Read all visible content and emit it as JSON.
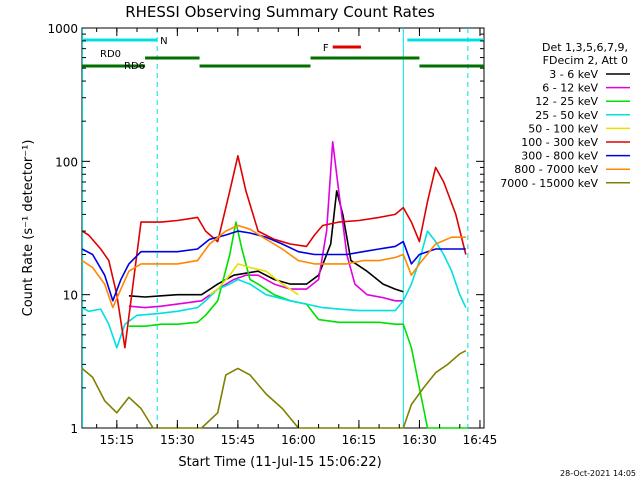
{
  "chart_data": {
    "type": "line",
    "title": "RHESSI Observing Summary Count Rates",
    "xlabel": "Start Time (11-Jul-15 15:06:22)",
    "ylabel": "Count Rate (s⁻¹ detector⁻¹)",
    "y_scale": "log",
    "ylim": [
      1,
      1000
    ],
    "xlim": [
      "15:06:22",
      "16:46:00"
    ],
    "x_ticks": [
      "15:15",
      "15:30",
      "15:45",
      "16:00",
      "16:15",
      "16:30",
      "16:45"
    ],
    "y_ticks": [
      "1",
      "10",
      "100",
      "1000"
    ],
    "grid": false,
    "footer": "28-Oct-2021 14:05",
    "legend": {
      "position": "right",
      "header": [
        "Det 1,3,5,6,7,9,",
        "FDecim 2, Att 0"
      ],
      "entries": [
        {
          "label": "3 - 6 keV",
          "color": "#000000"
        },
        {
          "label": "6 - 12 keV",
          "color": "#e000e0"
        },
        {
          "label": "12 - 25 keV",
          "color": "#00e000"
        },
        {
          "label": "25 - 50 keV",
          "color": "#00e0e0"
        },
        {
          "label": "50 - 100 keV",
          "color": "#e8e000"
        },
        {
          "label": "100 - 300 keV",
          "color": "#e00000"
        },
        {
          "label": "300 - 800 keV",
          "color": "#0000e0"
        },
        {
          "label": "800 - 7000 keV",
          "color": "#ff8800"
        },
        {
          "label": "7000 - 15000 keV",
          "color": "#808000"
        }
      ]
    },
    "flags": [
      {
        "label": "N",
        "color": "#00e0e0",
        "segments": [
          [
            "15:06:22",
            "15:25:00"
          ],
          [
            "16:27:00",
            "16:46:00"
          ]
        ]
      },
      {
        "label": "RD0",
        "color": "#007000",
        "segments": [
          [
            "15:22:00",
            "15:35:30"
          ],
          [
            "16:03:00",
            "16:30:00"
          ]
        ]
      },
      {
        "label": "RD6",
        "color": "#007000",
        "segments": [
          [
            "15:06:22",
            "15:22:00"
          ],
          [
            "15:35:30",
            "16:03:00"
          ],
          [
            "16:30:00",
            "16:46:00"
          ]
        ]
      },
      {
        "label": "F",
        "color": "#e00000",
        "segments": [
          [
            "16:08:30",
            "16:15:30"
          ]
        ]
      }
    ],
    "boundaries": {
      "solid": [
        "15:06:30",
        "16:26:00"
      ],
      "dashed": [
        "15:25:00",
        "16:42:00"
      ]
    },
    "series": [
      {
        "name": "3 - 6 keV",
        "color": "#000000",
        "x": [
          "15:06:22",
          "15:08:00",
          "15:10:00",
          "15:13:00",
          "15:16:00",
          "15:18:00",
          "15:22:00",
          "15:26:00",
          "15:30:00",
          "15:36:00",
          "15:40:00",
          "15:44:00",
          "15:47:00",
          "15:50:00",
          "15:54:00",
          "15:58:00",
          "16:02:00",
          "16:05:00",
          "16:08:00",
          "16:09:30",
          "16:11:00",
          "16:13:00",
          "16:17:00",
          "16:21:00",
          "16:24:00",
          "16:26:00",
          "16:29:00",
          "16:31:00"
        ],
        "y": [
          null,
          null,
          null,
          null,
          null,
          9.8,
          9.6,
          9.8,
          10,
          10,
          12,
          14,
          14.5,
          15,
          13,
          12,
          12,
          14,
          24,
          60,
          40,
          18,
          15,
          12,
          11,
          10.5,
          null,
          null
        ]
      },
      {
        "name": "6 - 12 keV",
        "color": "#e000e0",
        "x": [
          "15:06:22",
          "15:16:00",
          "15:18:00",
          "15:22:00",
          "15:26:00",
          "15:30:00",
          "15:36:00",
          "15:40:00",
          "15:44:00",
          "15:47:00",
          "15:50:00",
          "15:54:00",
          "15:58:00",
          "16:02:00",
          "16:05:00",
          "16:07:00",
          "16:08:30",
          "16:10:00",
          "16:12:00",
          "16:14:00",
          "16:17:00",
          "16:21:00",
          "16:24:00",
          "16:26:00",
          "16:29:00"
        ],
        "y": [
          null,
          null,
          8.2,
          8.0,
          8.2,
          8.5,
          9,
          11,
          13,
          14,
          14,
          12,
          11,
          11,
          13,
          30,
          140,
          60,
          20,
          12,
          10,
          9.5,
          9,
          9,
          null
        ]
      },
      {
        "name": "12 - 25 keV",
        "color": "#00e000",
        "x": [
          "15:06:22",
          "15:16:00",
          "15:18:00",
          "15:22:00",
          "15:26:00",
          "15:30:00",
          "15:35:00",
          "15:37:00",
          "15:40:00",
          "15:43:00",
          "15:44:30",
          "15:46:00",
          "15:48:00",
          "15:50:00",
          "15:54:00",
          "15:58:00",
          "16:02:00",
          "16:05:00",
          "16:10:00",
          "16:15:00",
          "16:20:00",
          "16:24:00",
          "16:26:00",
          "16:28:00",
          "16:30:00",
          "16:32:00",
          "16:34:00",
          "16:36:00",
          "16:38:00",
          "16:40:00",
          "16:42:00"
        ],
        "y": [
          null,
          null,
          5.8,
          5.8,
          6,
          6,
          6.2,
          7,
          9,
          20,
          35,
          22,
          13,
          12,
          10,
          9,
          8.5,
          6.5,
          6.2,
          6.2,
          6.2,
          6,
          6,
          4,
          2,
          1,
          1,
          1,
          1,
          1,
          1
        ]
      },
      {
        "name": "25 - 50 keV",
        "color": "#00e0e0",
        "x": [
          "15:06:22",
          "15:08:00",
          "15:11:00",
          "15:13:00",
          "15:15:00",
          "15:17:00",
          "15:20:00",
          "15:25:00",
          "15:30:00",
          "15:35:00",
          "15:37:00",
          "15:40:00",
          "15:43:00",
          "15:45:00",
          "15:48:00",
          "15:52:00",
          "15:58:00",
          "16:02:00",
          "16:06:00",
          "16:10:00",
          "16:15:00",
          "16:20:00",
          "16:24:00",
          "16:26:00",
          "16:28:00",
          "16:30:00",
          "16:32:00",
          "16:34:00",
          "16:36:00",
          "16:38:00",
          "16:40:00",
          "16:41:30"
        ],
        "y": [
          8,
          7.5,
          7.8,
          6,
          4,
          6,
          7,
          7.2,
          7.5,
          8,
          9,
          11,
          12,
          13,
          12,
          10,
          9,
          8.5,
          8,
          7.8,
          7.6,
          7.6,
          7.6,
          9,
          12,
          18,
          30,
          25,
          20,
          15,
          10,
          8
        ]
      },
      {
        "name": "50 - 100 keV",
        "color": "#e8e000",
        "x": [
          "15:06:22",
          "15:36:00",
          "15:38:00",
          "15:40:00",
          "15:43:00",
          "15:45:00",
          "15:48:00",
          "15:52:00",
          "15:56:00",
          "16:00:00",
          "16:02:00",
          "16:04:00",
          "16:08:00",
          "16:26:00"
        ],
        "y": [
          null,
          null,
          10,
          11,
          14,
          17,
          16,
          15,
          12,
          10,
          null,
          null,
          null,
          null
        ]
      },
      {
        "name": "100 - 300 keV",
        "color": "#e00000",
        "x": [
          "15:06:22",
          "15:08:00",
          "15:11:00",
          "15:13:00",
          "15:15:00",
          "15:17:00",
          "15:21:00",
          "15:26:00",
          "15:30:00",
          "15:35:00",
          "15:37:00",
          "15:40:00",
          "15:43:00",
          "15:45:00",
          "15:47:00",
          "15:50:00",
          "15:54:00",
          "15:58:00",
          "16:02:00",
          "16:04:00",
          "16:06:00",
          "16:10:00",
          "16:15:00",
          "16:20:00",
          "16:24:00",
          "16:26:00",
          "16:28:00",
          "16:30:00",
          "16:32:00",
          "16:34:00",
          "16:36:00",
          "16:39:00",
          "16:41:30"
        ],
        "y": [
          30,
          28,
          22,
          18,
          10,
          4,
          35,
          35,
          36,
          38,
          30,
          25,
          60,
          110,
          60,
          30,
          26,
          24,
          23,
          28,
          33,
          35,
          36,
          38,
          40,
          45,
          35,
          25,
          50,
          90,
          70,
          40,
          20
        ]
      },
      {
        "name": "300 - 800 keV",
        "color": "#0000e0",
        "x": [
          "15:06:22",
          "15:09:00",
          "15:12:00",
          "15:14:00",
          "15:16:00",
          "15:18:00",
          "15:21:00",
          "15:26:00",
          "15:30:00",
          "15:35:00",
          "15:38:00",
          "15:42:00",
          "15:45:00",
          "15:48:00",
          "15:52:00",
          "15:56:00",
          "16:00:00",
          "16:04:00",
          "16:08:00",
          "16:12:00",
          "16:16:00",
          "16:20:00",
          "16:24:00",
          "16:26:00",
          "16:28:00",
          "16:30:00",
          "16:34:00",
          "16:38:00",
          "16:41:30"
        ],
        "y": [
          22,
          20,
          14,
          9,
          13,
          17,
          21,
          21,
          21,
          22,
          26,
          28,
          30,
          29,
          27,
          24,
          21,
          20,
          20,
          20,
          21,
          22,
          23,
          25,
          17,
          20,
          22,
          22,
          22
        ]
      },
      {
        "name": "800 - 7000 keV",
        "color": "#ff8800",
        "x": [
          "15:06:22",
          "15:09:00",
          "15:12:00",
          "15:14:00",
          "15:16:00",
          "15:18:00",
          "15:21:00",
          "15:26:00",
          "15:30:00",
          "15:35:00",
          "15:38:00",
          "15:42:00",
          "15:45:00",
          "15:48:00",
          "15:52:00",
          "15:56:00",
          "16:00:00",
          "16:04:00",
          "16:08:00",
          "16:12:00",
          "16:16:00",
          "16:20:00",
          "16:24:00",
          "16:26:00",
          "16:28:00",
          "16:30:00",
          "16:34:00",
          "16:38:00",
          "16:41:30"
        ],
        "y": [
          18,
          16,
          12,
          8,
          11,
          15,
          17,
          17,
          17,
          18,
          24,
          30,
          33,
          31,
          26,
          22,
          18,
          17,
          17,
          17,
          18,
          18,
          19,
          20,
          14,
          17,
          24,
          27,
          27
        ]
      },
      {
        "name": "7000 - 15000 keV",
        "color": "#808000",
        "x": [
          "15:06:22",
          "15:09:00",
          "15:12:00",
          "15:15:00",
          "15:18:00",
          "15:21:00",
          "15:24:00",
          "15:28:00",
          "15:32:00",
          "15:36:00",
          "15:40:00",
          "15:42:00",
          "15:45:00",
          "15:48:00",
          "15:52:00",
          "15:56:00",
          "16:00:00",
          "16:04:00",
          "16:08:00",
          "16:12:00",
          "16:16:00",
          "16:20:00",
          "16:24:00",
          "16:26:00",
          "16:28:00",
          "16:31:00",
          "16:34:00",
          "16:37:00",
          "16:40:00",
          "16:41:30"
        ],
        "y": [
          2.8,
          2.4,
          1.6,
          1.3,
          1.7,
          1.4,
          1,
          1,
          1,
          1,
          1.3,
          2.5,
          2.8,
          2.5,
          1.8,
          1.4,
          1,
          1,
          1,
          1,
          1,
          1,
          1,
          1,
          1.5,
          2,
          2.6,
          3,
          3.6,
          3.8
        ]
      }
    ]
  }
}
